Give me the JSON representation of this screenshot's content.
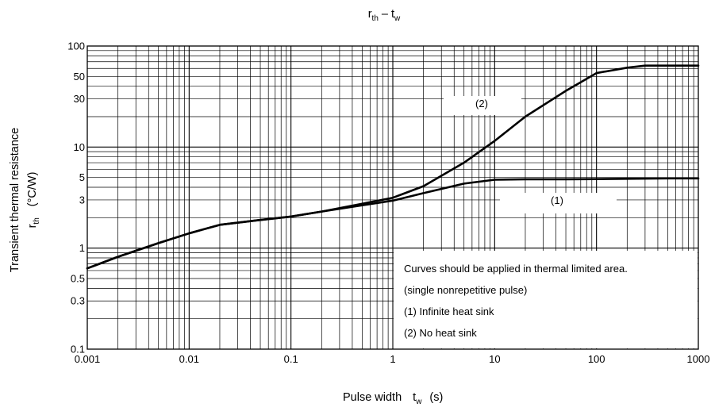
{
  "chart_data": {
    "type": "line",
    "title": {
      "main": "r",
      "sub1": "th",
      "dash": " – ",
      "main2": "t",
      "sub2": "w"
    },
    "xlabel": {
      "text": "Pulse width",
      "sym": "t",
      "sub": "w",
      "unit": "(s)"
    },
    "ylabel": {
      "line1": "Transient thermal resistance",
      "sym": "r",
      "sub": "th",
      "unit": "(°C/W)"
    },
    "x_scale": "log",
    "y_scale": "log",
    "xlim": [
      0.001,
      1000
    ],
    "ylim": [
      0.1,
      100
    ],
    "grid": true,
    "x_ticks": [
      {
        "v": 0.001,
        "label": "0.001"
      },
      {
        "v": 0.01,
        "label": "0.01"
      },
      {
        "v": 0.1,
        "label": "0.1"
      },
      {
        "v": 1,
        "label": "1"
      },
      {
        "v": 10,
        "label": "10"
      },
      {
        "v": 100,
        "label": "100"
      },
      {
        "v": 1000,
        "label": "1000"
      }
    ],
    "y_ticks": [
      {
        "v": 0.1,
        "label": "0.1"
      },
      {
        "v": 0.3,
        "label": "0.3"
      },
      {
        "v": 0.5,
        "label": "0.5"
      },
      {
        "v": 1,
        "label": "1"
      },
      {
        "v": 3,
        "label": "3"
      },
      {
        "v": 5,
        "label": "5"
      },
      {
        "v": 10,
        "label": "10"
      },
      {
        "v": 30,
        "label": "30"
      },
      {
        "v": 50,
        "label": "50"
      },
      {
        "v": 100,
        "label": "100"
      }
    ],
    "series": [
      {
        "name": "(1)",
        "x": [
          0.001,
          0.002,
          0.005,
          0.01,
          0.02,
          0.05,
          0.1,
          0.2,
          0.5,
          1,
          2,
          5,
          10,
          20,
          50,
          100,
          200,
          500,
          1000
        ],
        "y": [
          0.63,
          0.82,
          1.12,
          1.4,
          1.7,
          1.9,
          2.05,
          2.3,
          2.65,
          2.95,
          3.5,
          4.35,
          4.75,
          4.8,
          4.8,
          4.82,
          4.85,
          4.9,
          4.9
        ]
      },
      {
        "name": "(2)",
        "x": [
          0.001,
          0.002,
          0.005,
          0.01,
          0.02,
          0.05,
          0.1,
          0.2,
          0.5,
          1,
          2,
          5,
          10,
          20,
          50,
          100,
          200,
          300,
          500,
          1000
        ],
        "y": [
          0.63,
          0.82,
          1.12,
          1.4,
          1.7,
          1.9,
          2.05,
          2.3,
          2.75,
          3.15,
          4.1,
          7.0,
          11.5,
          20,
          36,
          54,
          61,
          64,
          64,
          64
        ]
      }
    ],
    "annotations": {
      "curve1_label": "(1)",
      "curve2_label": "(2)",
      "note_lines": [
        "Curves should be applied in thermal limited area.",
        "(single nonrepetitive pulse)",
        "(1)  Infinite heat sink",
        "(2)  No heat sink"
      ]
    }
  }
}
